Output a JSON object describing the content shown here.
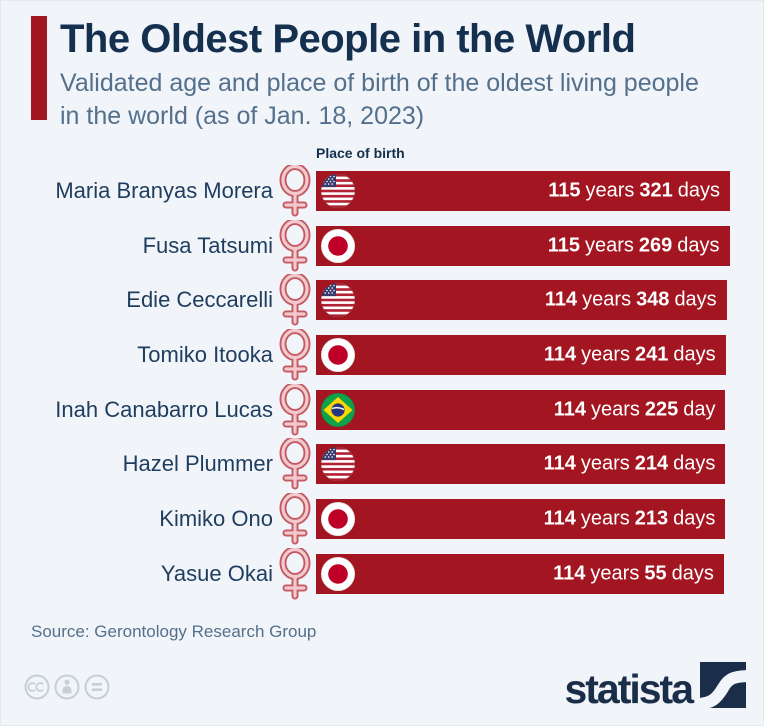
{
  "header": {
    "title": "The Oldest People in the World",
    "subtitle": "Validated age and place of birth of the oldest living people in the world (as of Jan. 18, 2023)",
    "subtitle_line1": "Validated age and place of birth of the oldest living people",
    "subtitle_line2": "in the world (as of Jan. 18, 2023)"
  },
  "chart_data": {
    "type": "bar",
    "orientation": "horizontal",
    "column_header": "Place of birth",
    "title": "The Oldest People in the World",
    "subtitle": "Validated age and place of birth of the oldest living people in the world (as of Jan. 18, 2023)",
    "value_format": "<years> years <days> days",
    "bar_scale": "bar length proportional to total age, zero-based",
    "rows": [
      {
        "name": "Maria Branyas Morera",
        "sex": "female",
        "place_of_birth": "United States",
        "flag": "us",
        "age_years": 115,
        "age_days": 321,
        "years_word": "years",
        "days_word": "days"
      },
      {
        "name": "Fusa Tatsumi",
        "sex": "female",
        "place_of_birth": "Japan",
        "flag": "jp",
        "age_years": 115,
        "age_days": 269,
        "years_word": "years",
        "days_word": "days"
      },
      {
        "name": "Edie Ceccarelli",
        "sex": "female",
        "place_of_birth": "United States",
        "flag": "us",
        "age_years": 114,
        "age_days": 348,
        "years_word": "years",
        "days_word": "days"
      },
      {
        "name": "Tomiko Itooka",
        "sex": "female",
        "place_of_birth": "Japan",
        "flag": "jp",
        "age_years": 114,
        "age_days": 241,
        "years_word": "years",
        "days_word": "days"
      },
      {
        "name": "Inah Canabarro Lucas",
        "sex": "female",
        "place_of_birth": "Brazil",
        "flag": "br",
        "age_years": 114,
        "age_days": 225,
        "years_word": "years",
        "days_word": "day"
      },
      {
        "name": "Hazel Plummer",
        "sex": "female",
        "place_of_birth": "United States",
        "flag": "us",
        "age_years": 114,
        "age_days": 214,
        "years_word": "years",
        "days_word": "days"
      },
      {
        "name": "Kimiko Ono",
        "sex": "female",
        "place_of_birth": "Japan",
        "flag": "jp",
        "age_years": 114,
        "age_days": 213,
        "years_word": "years",
        "days_word": "days"
      },
      {
        "name": "Yasue Okai",
        "sex": "female",
        "place_of_birth": "Japan",
        "flag": "jp",
        "age_years": 114,
        "age_days": 55,
        "years_word": "years",
        "days_word": "days"
      }
    ]
  },
  "footer": {
    "source": "Source: Gerontology Research Group",
    "license_icons": [
      "cc-icon",
      "attribution-person-icon",
      "equals-icon"
    ],
    "brand": "statista"
  },
  "colors": {
    "background": "#f1f4f9",
    "bar_red": "#a31621",
    "accent_red": "#a31621",
    "title_navy": "#14304e",
    "name_navy": "#1f3d5e",
    "subtitle_slate": "#54708c",
    "value_white": "#ffffff",
    "female_symbol_stroke": "#c45a64",
    "female_symbol_fill": "#f2c9cd",
    "brand_navy": "#1a2e49",
    "license_gray": "#c6cfd8"
  }
}
